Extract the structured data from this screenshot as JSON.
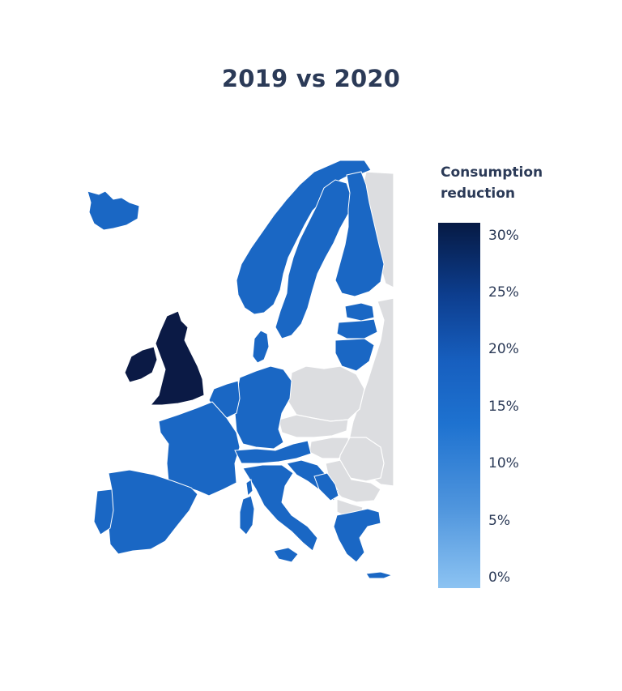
{
  "title": "2019 vs 2020",
  "legend": {
    "title_line1": "Consumption",
    "title_line2": "reduction",
    "ticks": [
      "30%",
      "25%",
      "20%",
      "15%",
      "10%",
      "5%",
      "0%"
    ],
    "scale_min": 0,
    "scale_max": 30,
    "color_low": "#8cc3f2",
    "color_high": "#061a44"
  },
  "colors": {
    "high_reduction": "#0b1a45",
    "mid_reduction": "#1a67c4",
    "no_data": "#dcdde0",
    "border": "#ffffff"
  }
}
